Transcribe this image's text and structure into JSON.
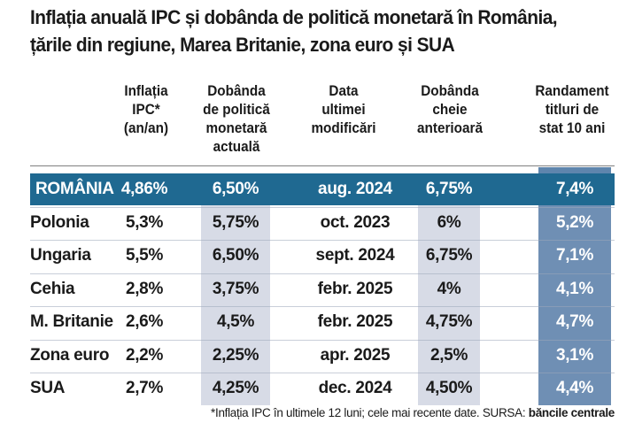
{
  "title_line1": "Inflația anuală IPC și dobânda de politică monetară în România,",
  "title_line2": "țările din regiune, Marea Britanie, zona euro și SUA",
  "headers": [
    [
      "Inflația",
      "IPC*",
      "(an/an)"
    ],
    [
      "Dobânda",
      "de politică",
      "monetară",
      "actuală"
    ],
    [
      "Data",
      "ultimei",
      "modificări"
    ],
    [
      "Dobânda",
      "cheie",
      "anterioară"
    ],
    [
      "Randament",
      "titluri de",
      "stat 10 ani"
    ]
  ],
  "colors": {
    "romania_band": "#1f6991",
    "dobanda_shade": "#d7dbe6",
    "randament_shade": "#6f8fb4"
  },
  "chart_data": {
    "type": "table",
    "columns": [
      "Inflația IPC* (an/an)",
      "Dobânda de politică monetară actuală",
      "Data ultimei modificări",
      "Dobânda cheie anterioară",
      "Randament titluri de stat 10 ani"
    ],
    "rows": [
      {
        "country": "ROMÂNIA",
        "ipc": "4,86%",
        "dobanda": "6,50%",
        "data": "aug. 2024",
        "anterioara": "6,75%",
        "randament": "7,4%"
      },
      {
        "country": "Polonia",
        "ipc": "5,3%",
        "dobanda": "5,75%",
        "data": "oct. 2023",
        "anterioara": "6%",
        "randament": "5,2%"
      },
      {
        "country": "Ungaria",
        "ipc": "5,5%",
        "dobanda": "6,50%",
        "data": "sept. 2024",
        "anterioara": "6,75%",
        "randament": "7,1%"
      },
      {
        "country": "Cehia",
        "ipc": "2,8%",
        "dobanda": "3,75%",
        "data": "febr. 2025",
        "anterioara": "4%",
        "randament": "4,1%"
      },
      {
        "country": "M. Britanie",
        "ipc": "2,6%",
        "dobanda": "4,5%",
        "data": "febr. 2025",
        "anterioara": "4,75%",
        "randament": "4,7%"
      },
      {
        "country": "Zona euro",
        "ipc": "2,2%",
        "dobanda": "2,25%",
        "data": "apr. 2025",
        "anterioara": "2,5%",
        "randament": "3,1%"
      },
      {
        "country": "SUA",
        "ipc": "2,7%",
        "dobanda": "4,25%",
        "data": "dec. 2024",
        "anterioara": "4,50%",
        "randament": "4,4%"
      }
    ]
  },
  "footnote": {
    "note": "*Inflația IPC în ultimele 12 luni; cele mai recente date.",
    "source_label": "SURSA:",
    "source_value": "băncile centrale"
  }
}
